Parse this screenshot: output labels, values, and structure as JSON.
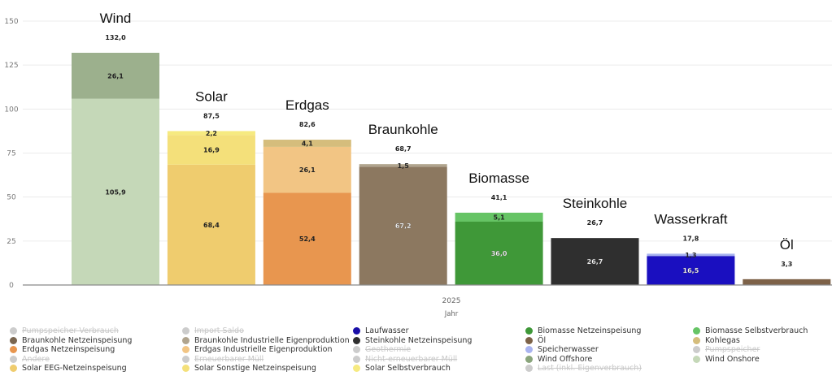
{
  "chart_data": {
    "type": "bar",
    "stacked": true,
    "title": "",
    "xlabel": "Jahr",
    "x_tick": "2025",
    "ylabel": "",
    "ylim": [
      0,
      150
    ],
    "yticks": [
      0,
      25,
      50,
      75,
      100,
      125,
      150
    ],
    "grid": true,
    "legend_position": "bottom",
    "categories": [
      "Wind",
      "Solar",
      "Erdgas",
      "Braunkohle",
      "Biomasse",
      "Steinkohle",
      "Wasserkraft",
      "Öl"
    ],
    "totals": [
      "132,0",
      "87,5",
      "82,6",
      "68,7",
      "41,1",
      "26,7",
      "17,8",
      "3,3"
    ],
    "bars": [
      {
        "category": "Wind",
        "total": 132.0,
        "segments": [
          {
            "series": "Wind Onshore",
            "value": 105.9,
            "label": "105,9",
            "color": "#c5d8b8"
          },
          {
            "series": "Wind Offshore",
            "value": 26.1,
            "label": "26,1",
            "color": "#9cb08d"
          }
        ]
      },
      {
        "category": "Solar",
        "total": 87.5,
        "segments": [
          {
            "series": "Solar EEG-Netzeinspeisung",
            "value": 68.4,
            "label": "68,4",
            "color": "#efcc6e"
          },
          {
            "series": "Solar Sonstige Netzeinspeisung",
            "value": 16.9,
            "label": "16,9",
            "color": "#f4e07a"
          },
          {
            "series": "Solar Selbstverbrauch",
            "value": 2.2,
            "label": "2,2",
            "color": "#f6ea80"
          }
        ]
      },
      {
        "category": "Erdgas",
        "total": 82.6,
        "segments": [
          {
            "series": "Erdgas Netzeinspeisung",
            "value": 52.4,
            "label": "52,4",
            "color": "#e8964f"
          },
          {
            "series": "Erdgas Industrielle Eigenproduktion",
            "value": 26.1,
            "label": "26,1",
            "color": "#f2c584"
          },
          {
            "series": "Kohlegas",
            "value": 4.1,
            "label": "4,1",
            "color": "#d5bd7c"
          }
        ]
      },
      {
        "category": "Braunkohle",
        "total": 68.7,
        "segments": [
          {
            "series": "Braunkohle Netzeinspeisung",
            "value": 67.2,
            "label": "67,2",
            "color": "#8c7860"
          },
          {
            "series": "Braunkohle Industrielle Eigenproduktion",
            "value": 1.5,
            "label": "1,5",
            "color": "#b0a48e"
          }
        ]
      },
      {
        "category": "Biomasse",
        "total": 41.1,
        "segments": [
          {
            "series": "Biomasse Netzeinspeisung",
            "value": 36.0,
            "label": "36,0",
            "color": "#3f9838"
          },
          {
            "series": "Biomasse Selbstverbrauch",
            "value": 5.1,
            "label": "5,1",
            "color": "#66c465"
          }
        ]
      },
      {
        "category": "Steinkohle",
        "total": 26.7,
        "segments": [
          {
            "series": "Steinkohle Netzeinspeisung",
            "value": 26.7,
            "label": "26,7",
            "color": "#2f2f2f"
          }
        ]
      },
      {
        "category": "Wasserkraft",
        "total": 17.8,
        "segments": [
          {
            "series": "Laufwasser",
            "value": 16.5,
            "label": "16,5",
            "color": "#1a0fc0"
          },
          {
            "series": "Speicherwasser",
            "value": 1.3,
            "label": "1,3",
            "color": "#a9b4f0"
          }
        ]
      },
      {
        "category": "Öl",
        "total": 3.3,
        "segments": [
          {
            "series": "Öl",
            "value": 3.3,
            "label": "",
            "color": "#7d6248"
          }
        ]
      }
    ],
    "legend": [
      {
        "label": "Pumpspeicher Verbrauch",
        "color": "#cccccc",
        "active": false
      },
      {
        "label": "Import Saldo",
        "color": "#cccccc",
        "active": false
      },
      {
        "label": "Laufwasser",
        "color": "#1a0fa8",
        "active": true
      },
      {
        "label": "Biomasse Netzeinspeisung",
        "color": "#3f9838",
        "active": true
      },
      {
        "label": "Biomasse Selbstverbrauch",
        "color": "#66c465",
        "active": true
      },
      {
        "label": "Braunkohle Netzeinspeisung",
        "color": "#7a6650",
        "active": true
      },
      {
        "label": "Braunkohle Industrielle Eigenproduktion",
        "color": "#b0a48e",
        "active": true
      },
      {
        "label": "Steinkohle Netzeinspeisung",
        "color": "#2f2f2f",
        "active": true
      },
      {
        "label": "Öl",
        "color": "#7d6248",
        "active": true
      },
      {
        "label": "Kohlegas",
        "color": "#d5bd7c",
        "active": true
      },
      {
        "label": "Erdgas Netzeinspeisung",
        "color": "#e8964f",
        "active": true
      },
      {
        "label": "Erdgas Industrielle Eigenproduktion",
        "color": "#f2c584",
        "active": true
      },
      {
        "label": "Geothermie",
        "color": "#cccccc",
        "active": false
      },
      {
        "label": "Speicherwasser",
        "color": "#a9b4f0",
        "active": true
      },
      {
        "label": "Pumpspeicher",
        "color": "#cccccc",
        "active": false
      },
      {
        "label": "Andere",
        "color": "#cccccc",
        "active": false
      },
      {
        "label": "Erneuerbarer Müll",
        "color": "#cccccc",
        "active": false
      },
      {
        "label": "Nicht-erneuerbarer Müll",
        "color": "#cccccc",
        "active": false
      },
      {
        "label": "Wind Offshore",
        "color": "#8aa57c",
        "active": true
      },
      {
        "label": "Wind Onshore",
        "color": "#c5d8b8",
        "active": true
      },
      {
        "label": "Solar EEG-Netzeinspeisung",
        "color": "#efcc6e",
        "active": true
      },
      {
        "label": "Solar Sonstige Netzeinspeisung",
        "color": "#f4e07a",
        "active": true
      },
      {
        "label": "Solar Selbstverbrauch",
        "color": "#f6ea80",
        "active": true
      },
      {
        "label": "Last (inkl. Eigenverbrauch)",
        "color": "#cccccc",
        "active": false
      }
    ]
  }
}
